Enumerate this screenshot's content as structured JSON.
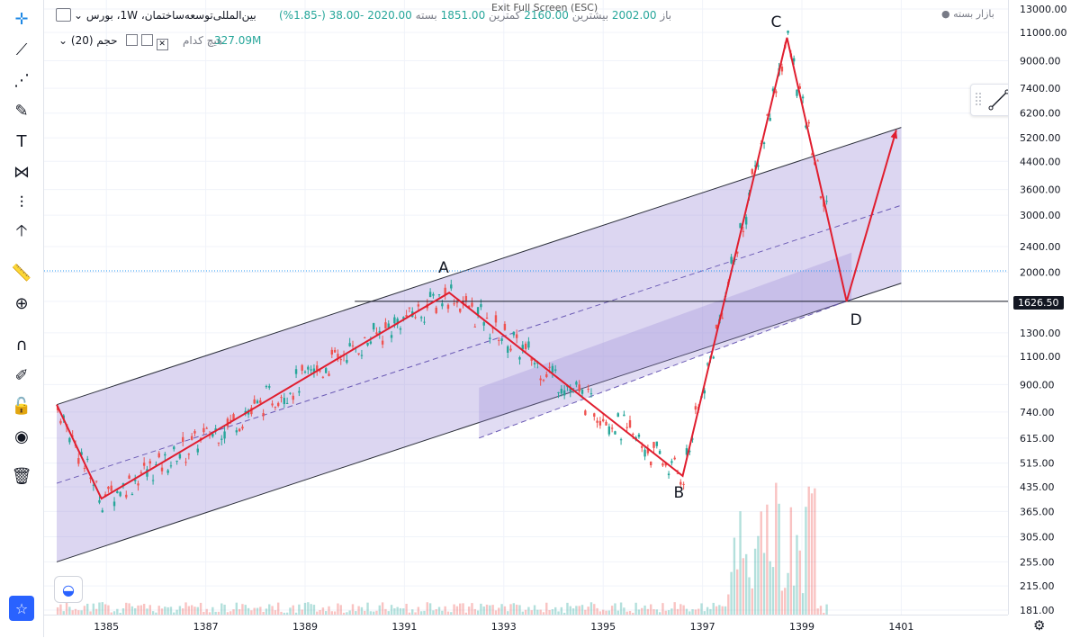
{
  "header": {
    "symbol": "بین‌المللی‌توسعه‌ساختمان",
    "interval": "1W",
    "exchange": "بورس",
    "open_label": "باز",
    "open_value": "2002.00",
    "high_label": "بیشترین",
    "high_value": "2160.00",
    "low_label": "کمترین",
    "low_value": "1851.00",
    "close_label": "بسته",
    "close_value": "2020.00",
    "change": "-38.00",
    "change_pct": "(-1.85%)",
    "volume_label": "حجم (20)",
    "volume_value": "327.09M",
    "volume_ma_label": "هیچ کدام",
    "market_status": "بازار بسته",
    "exit_fullscreen": "Exit Full Screen (ESC)"
  },
  "price_marker": "1626.50",
  "toolbar": {
    "icons": [
      "crosshair-icon",
      "trend-line-icon",
      "fib-icon",
      "brush-icon",
      "text-icon",
      "pattern-icon",
      "measure-icon",
      "arrow-up-icon",
      "ruler-icon",
      "zoom-icon",
      "magnet-icon",
      "lock-draw-icon",
      "unlock-icon",
      "eye-icon",
      "trash-icon",
      "star-icon"
    ]
  },
  "colors": {
    "channel_fill": "#9c8ad6",
    "channel_line": "#2a2e39",
    "zigzag": "#e01e2f",
    "candle_up": "#26a69a",
    "candle_down": "#ef5350",
    "price_line": "#131722"
  },
  "chart_data": {
    "type": "candlestick",
    "log_scale": true,
    "y_ticks": [
      181,
      215,
      255,
      305,
      365,
      435,
      515,
      615,
      740,
      900,
      1100,
      1300,
      1626.5,
      2000,
      2400,
      3000,
      3600,
      4400,
      5200,
      6200,
      7400,
      9000,
      11000,
      13000
    ],
    "y_tick_labels": [
      "181.00",
      "215.00",
      "255.00",
      "305.00",
      "365.00",
      "435.00",
      "515.00",
      "615.00",
      "740.00",
      "900.00",
      "1100.00",
      "1300.00",
      "",
      "2000.00",
      "2400.00",
      "3000.00",
      "3600.00",
      "4400.00",
      "5200.00",
      "6200.00",
      "7400.00",
      "9000.00",
      "11000.00",
      "13000.00"
    ],
    "x_ticks": [
      "1385",
      "1387",
      "1389",
      "1391",
      "1393",
      "1395",
      "1397",
      "1399",
      "1401"
    ],
    "pattern_points": [
      {
        "label": "",
        "year": 1384.0,
        "price": 780
      },
      {
        "label": "",
        "year": 1384.9,
        "price": 400
      },
      {
        "label": "A",
        "year": 1391.9,
        "price": 1730
      },
      {
        "label": "B",
        "year": 1396.6,
        "price": 470
      },
      {
        "label": "C",
        "year": 1398.7,
        "price": 10600
      },
      {
        "label": "D",
        "year": 1399.9,
        "price": 1626.5
      },
      {
        "label": "",
        "year": 1400.9,
        "price": 5500
      }
    ],
    "labels": [
      "A",
      "B",
      "C",
      "D"
    ],
    "horizontal_line": 1626.5,
    "price_level": 2020,
    "channel": {
      "upper_start": {
        "year": 1384.0,
        "price": 780
      },
      "upper_end": {
        "year": 1401.0,
        "price": 5600
      },
      "lower_start": {
        "year": 1384.0,
        "price": 255
      },
      "lower_end": {
        "year": 1401.0,
        "price": 1850
      }
    },
    "inner_channel": {
      "upper_start": {
        "year": 1392.5,
        "price": 880
      },
      "upper_end": {
        "year": 1400.0,
        "price": 2300
      },
      "lower_start": {
        "year": 1392.5,
        "price": 615
      },
      "lower_end": {
        "year": 1400.0,
        "price": 1650
      }
    }
  }
}
